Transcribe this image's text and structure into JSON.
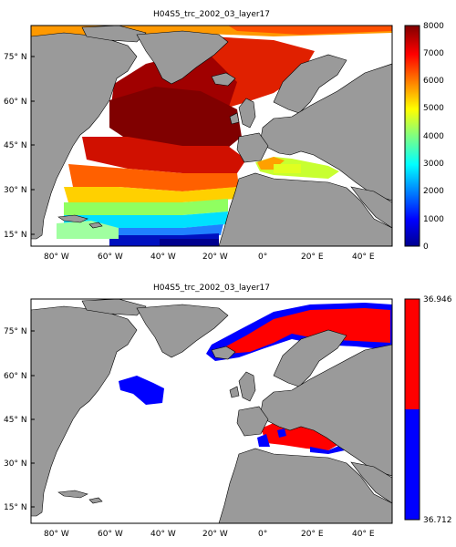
{
  "panels": [
    {
      "title": "H04S5_trc_2002_03_layer17",
      "y_ticks": [
        "75° N",
        "60° N",
        "45° N",
        "30° N",
        "15° N"
      ],
      "x_ticks": [
        "80° W",
        "60° W",
        "40° W",
        "20° W",
        "0°",
        "20° E",
        "40° E"
      ],
      "colorbar_ticks": [
        "8000",
        "7000",
        "6000",
        "5000",
        "4000",
        "3000",
        "2000",
        "1000",
        "0"
      ],
      "colormap": "jet",
      "land_color": "#9a9a9a"
    },
    {
      "title": "H04S5_trc_2002_03_layer17",
      "y_ticks": [
        "75° N",
        "60° N",
        "45° N",
        "30° N",
        "15° N"
      ],
      "x_ticks": [
        "80° W",
        "60° W",
        "40° W",
        "20° W",
        "0°",
        "20° E",
        "40° E"
      ],
      "colorbar_ticks": [
        "36.946",
        "36.712"
      ],
      "colors": {
        "high": "#ff0000",
        "low": "#0000ff"
      },
      "land_color": "#9a9a9a"
    }
  ]
}
